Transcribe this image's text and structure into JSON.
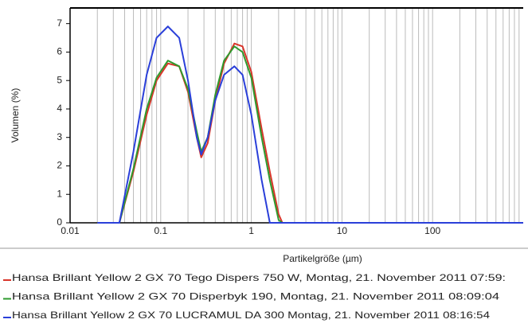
{
  "chart_data": {
    "type": "line",
    "x_label": "Partikelgröße (µm)",
    "y_label": "Volumen (%)",
    "x": [
      0.02,
      0.035,
      0.05,
      0.07,
      0.09,
      0.12,
      0.16,
      0.2,
      0.25,
      0.28,
      0.33,
      0.4,
      0.5,
      0.65,
      0.8,
      1.0,
      1.3,
      1.6,
      2.0,
      2.2,
      5,
      100,
      1000
    ],
    "series": [
      {
        "name": "Hansa Brillant Yellow 2 GX 70 Tego Dispers 750 W, Montag, 21. November 2011 07:59:",
        "color": "#d9352a",
        "values": [
          0,
          0,
          1.8,
          3.8,
          5.0,
          5.6,
          5.5,
          4.6,
          3.0,
          2.3,
          2.8,
          4.3,
          5.6,
          6.3,
          6.2,
          5.3,
          3.3,
          1.8,
          0.3,
          0,
          0,
          0,
          0
        ]
      },
      {
        "name": "Hansa Brillant Yellow 2 GX 70 Disperbyk 190, Montag, 21. November 2011 08:09:04",
        "color": "#2e9a2e",
        "values": [
          0,
          0,
          1.9,
          4.0,
          5.1,
          5.7,
          5.5,
          4.7,
          3.2,
          2.5,
          3.0,
          4.5,
          5.7,
          6.2,
          6.0,
          5.1,
          3.0,
          1.5,
          0.1,
          0,
          0,
          0,
          0
        ]
      },
      {
        "name": "Hansa Brillant Yellow 2 GX 70 LUCRAMUL DA 300 Montag, 21. November 2011 08:16:54",
        "color": "#2a3fd9",
        "values": [
          0,
          0,
          2.5,
          5.2,
          6.5,
          6.9,
          6.5,
          5.0,
          3.0,
          2.4,
          3.0,
          4.3,
          5.2,
          5.5,
          5.2,
          3.8,
          1.5,
          0,
          0,
          0,
          0,
          0,
          0
        ]
      }
    ],
    "xlim": [
      0.01,
      1000
    ],
    "xticks": [
      0.01,
      0.1,
      1,
      10,
      100
    ],
    "xscale": "log",
    "ylim": [
      0,
      7.55
    ],
    "yticks": [
      0,
      1,
      2,
      3,
      4,
      5,
      6,
      7
    ],
    "grid": "x-minor"
  }
}
